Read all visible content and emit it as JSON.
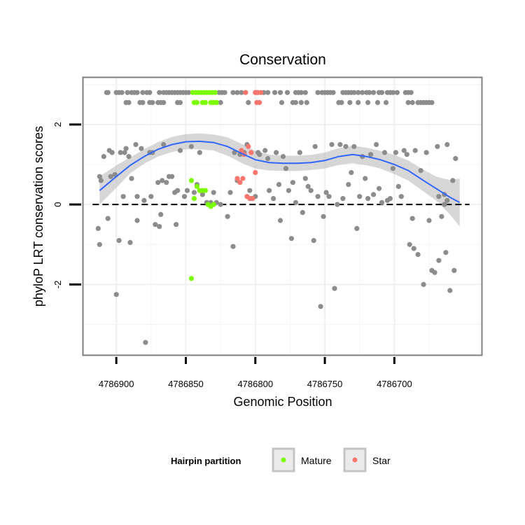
{
  "chart_data": {
    "type": "scatter",
    "title": "Conservation",
    "xlabel": "Genomic Position",
    "ylabel": "phyloP LRT conservation scores",
    "x_reversed": true,
    "xlim": [
      4786637,
      4786924
    ],
    "ylim": [
      -3.77,
      3.18
    ],
    "x_ticks": [
      4786900,
      4786850,
      4786800,
      4786750,
      4786700
    ],
    "x_tick_labels": [
      "4786900",
      "4786850",
      "4786800",
      "4786750",
      "4786700"
    ],
    "y_ticks": [
      -2,
      0,
      2
    ],
    "y_tick_labels": [
      "-2",
      "0",
      "2"
    ],
    "grid": true,
    "reference_line": {
      "y": 0,
      "style": "dashed"
    },
    "legend": {
      "title": "Hairpin partition",
      "position": "bottom",
      "entries": [
        {
          "label": "Mature",
          "color": "#7CFC00"
        },
        {
          "label": "Star",
          "color": "#F8766D"
        }
      ]
    },
    "colors": {
      "other": "#8c8c8c",
      "smooth": "#3366FF",
      "band": "#bdbdbd",
      "Mature": "#7CFC00",
      "Star": "#F8766D"
    },
    "other_points": [
      [
        4786912,
        0.7
      ],
      [
        4786911,
        0.6
      ],
      [
        4786913,
        -0.6
      ],
      [
        4786912,
        -1.0
      ],
      [
        4786909,
        1.2
      ],
      [
        4786905,
        1.35
      ],
      [
        4786906,
        -0.35
      ],
      [
        4786903,
        1.3
      ],
      [
        4786904,
        0.7
      ],
      [
        4786901,
        0.75
      ],
      [
        4786900,
        -2.25
      ],
      [
        4786897,
        1.3
      ],
      [
        4786898,
        -0.9
      ],
      [
        4786895,
        0.2
      ],
      [
        4786894,
        1.3
      ],
      [
        4786893,
        1.4
      ],
      [
        4786891,
        1.2
      ],
      [
        4786890,
        -0.95
      ],
      [
        4786889,
        0.65
      ],
      [
        4786886,
        1.5
      ],
      [
        4786885,
        0.2
      ],
      [
        4786885,
        -0.4
      ],
      [
        4786882,
        1.4
      ],
      [
        4786880,
        0.1
      ],
      [
        4786879,
        -3.45
      ],
      [
        4786876,
        1.3
      ],
      [
        4786875,
        0.2
      ],
      [
        4786874,
        1.3
      ],
      [
        4786872,
        -0.5
      ],
      [
        4786870,
        0.55
      ],
      [
        4786869,
        -0.55
      ],
      [
        4786868,
        -0.25
      ],
      [
        4786867,
        0.6
      ],
      [
        4786866,
        1.5
      ],
      [
        4786864,
        0.55
      ],
      [
        4786862,
        0.7
      ],
      [
        4786860,
        0.7
      ],
      [
        4786858,
        0.3
      ],
      [
        4786857,
        -0.5
      ],
      [
        4786856,
        0.35
      ],
      [
        4786854,
        1.35
      ],
      [
        4786851,
        0.2
      ],
      [
        4786849,
        0.35
      ],
      [
        4786846,
        1.45
      ],
      [
        4786844,
        0.3
      ],
      [
        4786842,
        0.5
      ],
      [
        4786840,
        1.3
      ],
      [
        4786838,
        0.25
      ],
      [
        4786835,
        0.05
      ],
      [
        4786832,
        0.05
      ],
      [
        4786830,
        0.3
      ],
      [
        4786828,
        0.05
      ],
      [
        4786825,
        0.0
      ],
      [
        4786820,
        -0.3
      ],
      [
        4786818,
        0.3
      ],
      [
        4786816,
        -1.05
      ],
      [
        4786815,
        1.3
      ],
      [
        4786813,
        0.6
      ],
      [
        4786811,
        1.25
      ],
      [
        4786808,
        1.3
      ],
      [
        4786806,
        1.5
      ],
      [
        4786804,
        0.35
      ],
      [
        4786803,
        0.15
      ],
      [
        4786800,
        0.2
      ],
      [
        4786798,
        1.3
      ],
      [
        4786797,
        1.25
      ],
      [
        4786793,
        1.35
      ],
      [
        4786791,
        1.15
      ],
      [
        4786790,
        0.35
      ],
      [
        4786787,
        0.15
      ],
      [
        4786785,
        1.3
      ],
      [
        4786783,
        0.5
      ],
      [
        4786782,
        -0.4
      ],
      [
        4786780,
        1.2
      ],
      [
        4786778,
        0.9
      ],
      [
        4786776,
        0.35
      ],
      [
        4786774,
        -0.85
      ],
      [
        4786773,
        0.55
      ],
      [
        4786771,
        0.05
      ],
      [
        4786768,
        1.3
      ],
      [
        4786766,
        -0.2
      ],
      [
        4786764,
        0.65
      ],
      [
        4786762,
        0.45
      ],
      [
        4786760,
        0.35
      ],
      [
        4786758,
        -0.9
      ],
      [
        4786757,
        1.45
      ],
      [
        4786755,
        0.2
      ],
      [
        4786753,
        -2.55
      ],
      [
        4786751,
        -0.3
      ],
      [
        4786749,
        0.3
      ],
      [
        4786747,
        0.2
      ],
      [
        4786745,
        1.5
      ],
      [
        4786743,
        -2.1
      ],
      [
        4786741,
        0.0
      ],
      [
        4786739,
        1.5
      ],
      [
        4786737,
        0.15
      ],
      [
        4786735,
        1.45
      ],
      [
        4786733,
        0.5
      ],
      [
        4786731,
        0.8
      ],
      [
        4786729,
        1.45
      ],
      [
        4786727,
        -0.6
      ],
      [
        4786725,
        0.2
      ],
      [
        4786723,
        1.2
      ],
      [
        4786721,
        0.65
      ],
      [
        4786719,
        0.15
      ],
      [
        4786717,
        1.25
      ],
      [
        4786715,
        0.25
      ],
      [
        4786713,
        1.5
      ],
      [
        4786711,
        0.4
      ],
      [
        4786709,
        0.05
      ],
      [
        4786707,
        1.3
      ],
      [
        4786705,
        0.1
      ],
      [
        4786703,
        0.15
      ],
      [
        4786701,
        0.9
      ],
      [
        4786699,
        1.3
      ],
      [
        4786697,
        0.45
      ],
      [
        4786695,
        0.2
      ],
      [
        4786693,
        1.35
      ],
      [
        4786691,
        1.25
      ],
      [
        4786689,
        -1.0
      ],
      [
        4786687,
        -0.35
      ],
      [
        4786686,
        -1.1
      ],
      [
        4786685,
        1.35
      ],
      [
        4786683,
        -1.25
      ],
      [
        4786681,
        0.85
      ],
      [
        4786679,
        -2.0
      ],
      [
        4786677,
        1.3
      ],
      [
        4786675,
        -0.4
      ],
      [
        4786673,
        -1.65
      ],
      [
        4786671,
        -1.7
      ],
      [
        4786669,
        1.45
      ],
      [
        4786668,
        -1.4
      ],
      [
        4786666,
        -0.3
      ],
      [
        4786664,
        0.0
      ],
      [
        4786663,
        -1.2
      ],
      [
        4786662,
        1.5
      ],
      [
        4786660,
        -2.15
      ],
      [
        4786658,
        0.6
      ],
      [
        4786657,
        -1.65
      ],
      [
        4786656,
        1.15
      ],
      [
        4786664,
        0.25
      ],
      [
        4786662,
        0.1
      ],
      [
        4786668,
        0.2
      ],
      [
        4786907,
        2.8
      ],
      [
        4786906,
        2.8
      ],
      [
        4786900,
        2.8
      ],
      [
        4786898,
        2.8
      ],
      [
        4786896,
        2.8
      ],
      [
        4786892,
        2.8
      ],
      [
        4786889,
        2.8
      ],
      [
        4786887,
        2.8
      ],
      [
        4786885,
        2.8
      ],
      [
        4786881,
        2.8
      ],
      [
        4786878,
        2.8
      ],
      [
        4786876,
        2.8
      ],
      [
        4786869,
        2.8
      ],
      [
        4786866,
        2.8
      ],
      [
        4786864,
        2.8
      ],
      [
        4786862,
        2.8
      ],
      [
        4786860,
        2.8
      ],
      [
        4786858,
        2.8
      ],
      [
        4786856,
        2.8
      ],
      [
        4786854,
        2.8
      ],
      [
        4786852,
        2.8
      ],
      [
        4786850,
        2.8
      ],
      [
        4786848,
        2.8
      ],
      [
        4786826,
        2.8
      ],
      [
        4786824,
        2.8
      ],
      [
        4786822,
        2.8
      ],
      [
        4786816,
        2.8
      ],
      [
        4786813,
        2.8
      ],
      [
        4786810,
        2.8
      ],
      [
        4786799,
        2.8
      ],
      [
        4786794,
        2.8
      ],
      [
        4786791,
        2.8
      ],
      [
        4786786,
        2.8
      ],
      [
        4786782,
        2.8
      ],
      [
        4786777,
        2.8
      ],
      [
        4786771,
        2.8
      ],
      [
        4786769,
        2.8
      ],
      [
        4786767,
        2.8
      ],
      [
        4786764,
        2.8
      ],
      [
        4786755,
        2.8
      ],
      [
        4786752,
        2.8
      ],
      [
        4786750,
        2.8
      ],
      [
        4786748,
        2.8
      ],
      [
        4786746,
        2.8
      ],
      [
        4786744,
        2.8
      ],
      [
        4786737,
        2.8
      ],
      [
        4786735,
        2.8
      ],
      [
        4786733,
        2.8
      ],
      [
        4786731,
        2.8
      ],
      [
        4786729,
        2.8
      ],
      [
        4786726,
        2.8
      ],
      [
        4786723,
        2.8
      ],
      [
        4786720,
        2.8
      ],
      [
        4786718,
        2.8
      ],
      [
        4786715,
        2.8
      ],
      [
        4786711,
        2.8
      ],
      [
        4786709,
        2.8
      ],
      [
        4786705,
        2.8
      ],
      [
        4786703,
        2.8
      ],
      [
        4786701,
        2.8
      ],
      [
        4786698,
        2.8
      ],
      [
        4786692,
        2.8
      ],
      [
        4786690,
        2.8
      ],
      [
        4786688,
        2.8
      ],
      [
        4786893,
        2.55
      ],
      [
        4786891,
        2.55
      ],
      [
        4786883,
        2.55
      ],
      [
        4786881,
        2.55
      ],
      [
        4786876,
        2.55
      ],
      [
        4786874,
        2.55
      ],
      [
        4786870,
        2.55
      ],
      [
        4786868,
        2.55
      ],
      [
        4786866,
        2.55
      ],
      [
        4786856,
        2.55
      ],
      [
        4786854,
        2.55
      ],
      [
        4786828,
        2.55
      ],
      [
        4786825,
        2.55
      ],
      [
        4786805,
        2.55
      ],
      [
        4786781,
        2.55
      ],
      [
        4786773,
        2.55
      ],
      [
        4786771,
        2.55
      ],
      [
        4786767,
        2.55
      ],
      [
        4786763,
        2.55
      ],
      [
        4786740,
        2.55
      ],
      [
        4786738,
        2.55
      ],
      [
        4786732,
        2.55
      ],
      [
        4786726,
        2.55
      ],
      [
        4786719,
        2.55
      ],
      [
        4786712,
        2.55
      ],
      [
        4786706,
        2.55
      ],
      [
        4786690,
        2.55
      ],
      [
        4786687,
        2.55
      ],
      [
        4786683,
        2.55
      ],
      [
        4786681,
        2.55
      ],
      [
        4786679,
        2.55
      ],
      [
        4786677,
        2.55
      ],
      [
        4786675,
        2.55
      ],
      [
        4786673,
        2.55
      ]
    ],
    "mature_points": [
      [
        4786845,
        2.8
      ],
      [
        4786843,
        2.8
      ],
      [
        4786841,
        2.8
      ],
      [
        4786839,
        2.8
      ],
      [
        4786837,
        2.8
      ],
      [
        4786835,
        2.8
      ],
      [
        4786833,
        2.8
      ],
      [
        4786831,
        2.8
      ],
      [
        4786829,
        2.8
      ],
      [
        4786844,
        2.55
      ],
      [
        4786842,
        2.55
      ],
      [
        4786838,
        2.55
      ],
      [
        4786836,
        2.55
      ],
      [
        4786832,
        2.55
      ],
      [
        4786830,
        2.55
      ],
      [
        4786828,
        2.55
      ],
      [
        4786846,
        0.6
      ],
      [
        4786844,
        0.15
      ],
      [
        4786842,
        0.45
      ],
      [
        4786840,
        0.35
      ],
      [
        4786838,
        0.35
      ],
      [
        4786836,
        0.35
      ],
      [
        4786834,
        0.0
      ],
      [
        4786832,
        -0.05
      ],
      [
        4786830,
        0.0
      ],
      [
        4786846,
        -1.85
      ]
    ],
    "star_points": [
      [
        4786807,
        2.8
      ],
      [
        4786800,
        2.8
      ],
      [
        4786798,
        2.8
      ],
      [
        4786796,
        2.8
      ],
      [
        4786799,
        2.55
      ],
      [
        4786797,
        2.55
      ],
      [
        4786813,
        0.65
      ],
      [
        4786811,
        0.55
      ],
      [
        4786809,
        0.65
      ],
      [
        4786805,
        1.45
      ],
      [
        4786803,
        1.3
      ],
      [
        4786806,
        0.2
      ],
      [
        4786804,
        0.15
      ],
      [
        4786802,
        0.15
      ],
      [
        4786800,
        0.8
      ],
      [
        4786810,
        1.35
      ],
      [
        4786808,
        1.25
      ]
    ],
    "smooth": {
      "x": [
        4786912,
        4786900,
        4786890,
        4786880,
        4786870,
        4786860,
        4786850,
        4786840,
        4786830,
        4786820,
        4786810,
        4786800,
        4786790,
        4786780,
        4786770,
        4786760,
        4786750,
        4786740,
        4786730,
        4786720,
        4786710,
        4786700,
        4786690,
        4786680,
        4786670,
        4786660,
        4786653
      ],
      "y": [
        0.35,
        0.7,
        0.98,
        1.2,
        1.38,
        1.5,
        1.57,
        1.58,
        1.55,
        1.45,
        1.28,
        1.12,
        1.05,
        1.03,
        1.03,
        1.05,
        1.1,
        1.2,
        1.25,
        1.2,
        1.12,
        1.0,
        0.85,
        0.62,
        0.4,
        0.18,
        0.05
      ],
      "lower": [
        0.0,
        0.42,
        0.78,
        1.02,
        1.2,
        1.31,
        1.38,
        1.38,
        1.35,
        1.22,
        1.04,
        0.9,
        0.85,
        0.84,
        0.84,
        0.86,
        0.9,
        0.99,
        1.03,
        0.98,
        0.9,
        0.76,
        0.6,
        0.35,
        0.1,
        -0.25,
        -0.55
      ],
      "upper": [
        0.7,
        0.98,
        1.18,
        1.38,
        1.56,
        1.69,
        1.76,
        1.78,
        1.75,
        1.68,
        1.52,
        1.34,
        1.25,
        1.22,
        1.22,
        1.24,
        1.3,
        1.41,
        1.47,
        1.42,
        1.34,
        1.24,
        1.1,
        0.89,
        0.7,
        0.61,
        0.65
      ]
    }
  }
}
